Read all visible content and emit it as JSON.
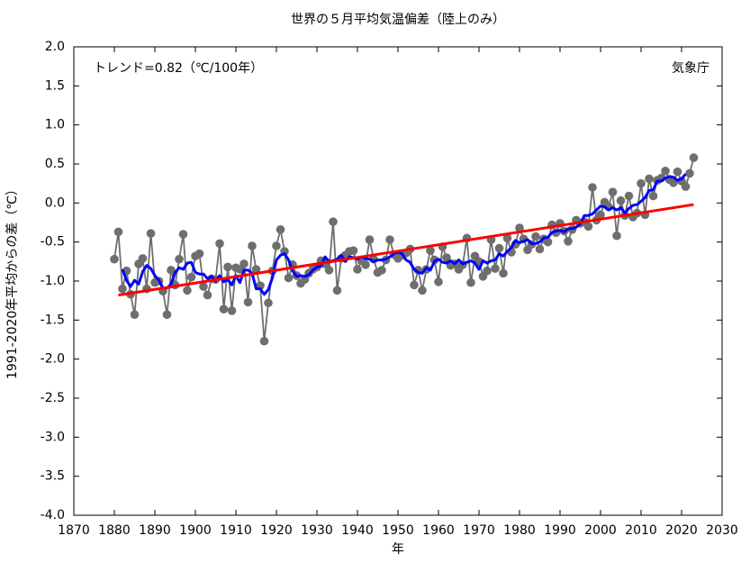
{
  "chart_data": {
    "type": "line",
    "title": "世界の５月平均気温偏差（陸上のみ）",
    "xlabel": "年",
    "ylabel": "1991-2020年平均からの差（℃）",
    "annotations": [
      "トレンド=0.82（℃/100年）",
      "気象庁"
    ],
    "x": [
      1880,
      1881,
      1882,
      1883,
      1884,
      1885,
      1886,
      1887,
      1888,
      1889,
      1890,
      1891,
      1892,
      1893,
      1894,
      1895,
      1896,
      1897,
      1898,
      1899,
      1900,
      1901,
      1902,
      1903,
      1904,
      1905,
      1906,
      1907,
      1908,
      1909,
      1910,
      1911,
      1912,
      1913,
      1914,
      1915,
      1916,
      1917,
      1918,
      1919,
      1920,
      1921,
      1922,
      1923,
      1924,
      1925,
      1926,
      1927,
      1928,
      1929,
      1930,
      1931,
      1932,
      1933,
      1934,
      1935,
      1936,
      1937,
      1938,
      1939,
      1940,
      1941,
      1942,
      1943,
      1944,
      1945,
      1946,
      1947,
      1948,
      1949,
      1950,
      1951,
      1952,
      1953,
      1954,
      1955,
      1956,
      1957,
      1958,
      1959,
      1960,
      1961,
      1962,
      1963,
      1964,
      1965,
      1966,
      1967,
      1968,
      1969,
      1970,
      1971,
      1972,
      1973,
      1974,
      1975,
      1976,
      1977,
      1978,
      1979,
      1980,
      1981,
      1982,
      1983,
      1984,
      1985,
      1986,
      1987,
      1988,
      1989,
      1990,
      1991,
      1992,
      1993,
      1994,
      1995,
      1996,
      1997,
      1998,
      1999,
      2000,
      2001,
      2002,
      2003,
      2004,
      2005,
      2006,
      2007,
      2008,
      2009,
      2010,
      2011,
      2012,
      2013,
      2014,
      2015,
      2016,
      2017,
      2018,
      2019,
      2020,
      2021,
      2022,
      2023
    ],
    "series": [
      {
        "color": "#6e6e6e",
        "markers": true,
        "values": [
          -0.72,
          -0.37,
          -1.1,
          -0.87,
          -1.17,
          -1.43,
          -0.78,
          -0.71,
          -1.1,
          -0.39,
          -1.02,
          -1.0,
          -1.13,
          -1.43,
          -0.86,
          -1.05,
          -0.72,
          -0.4,
          -1.12,
          -0.95,
          -0.68,
          -0.65,
          -1.07,
          -1.18,
          -0.97,
          -0.98,
          -0.52,
          -1.36,
          -0.82,
          -1.38,
          -0.83,
          -0.85,
          -0.78,
          -1.27,
          -0.55,
          -0.85,
          -1.06,
          -1.77,
          -1.28,
          -0.87,
          -0.55,
          -0.34,
          -0.62,
          -0.96,
          -0.79,
          -0.93,
          -1.03,
          -0.98,
          -0.9,
          -0.85,
          -0.82,
          -0.74,
          -0.78,
          -0.86,
          -0.24,
          -1.12,
          -0.71,
          -0.67,
          -0.62,
          -0.61,
          -0.85,
          -0.74,
          -0.79,
          -0.47,
          -0.72,
          -0.89,
          -0.86,
          -0.73,
          -0.47,
          -0.66,
          -0.71,
          -0.67,
          -0.64,
          -0.59,
          -1.05,
          -0.86,
          -1.12,
          -0.85,
          -0.61,
          -0.73,
          -1.01,
          -0.56,
          -0.7,
          -0.8,
          -0.78,
          -0.85,
          -0.79,
          -0.45,
          -1.02,
          -0.68,
          -0.75,
          -0.94,
          -0.87,
          -0.47,
          -0.84,
          -0.58,
          -0.9,
          -0.45,
          -0.63,
          -0.53,
          -0.32,
          -0.46,
          -0.6,
          -0.53,
          -0.43,
          -0.59,
          -0.46,
          -0.5,
          -0.28,
          -0.38,
          -0.26,
          -0.36,
          -0.49,
          -0.34,
          -0.22,
          -0.26,
          -0.24,
          -0.3,
          0.2,
          -0.22,
          -0.15,
          0.01,
          -0.05,
          0.14,
          -0.42,
          0.03,
          -0.16,
          0.09,
          -0.18,
          -0.13,
          0.25,
          -0.15,
          0.31,
          0.09,
          0.29,
          0.32,
          0.41,
          0.3,
          0.26,
          0.4,
          0.28,
          0.21,
          0.38,
          0.58
        ]
      },
      {
        "color": "#0000ff",
        "markers": false,
        "values": [
          null,
          null,
          -0.85,
          -0.99,
          -1.07,
          -0.99,
          -1.04,
          -0.88,
          -0.8,
          -0.84,
          -0.93,
          -0.99,
          -1.09,
          -1.09,
          -1.04,
          -0.89,
          -0.83,
          -0.85,
          -0.77,
          -0.76,
          -0.89,
          -0.91,
          -0.91,
          -0.97,
          -0.94,
          -1.0,
          -0.93,
          -1.01,
          -0.98,
          -1.05,
          -0.93,
          -1.02,
          -0.86,
          -0.86,
          -0.9,
          -1.1,
          -1.1,
          -1.17,
          -1.11,
          -0.96,
          -0.73,
          -0.67,
          -0.65,
          -0.73,
          -0.87,
          -0.94,
          -0.93,
          -0.94,
          -0.92,
          -0.86,
          -0.82,
          -0.81,
          -0.69,
          -0.75,
          -0.74,
          -0.72,
          -0.67,
          -0.75,
          -0.69,
          -0.7,
          -0.72,
          -0.69,
          -0.71,
          -0.72,
          -0.75,
          -0.73,
          -0.73,
          -0.72,
          -0.69,
          -0.65,
          -0.63,
          -0.65,
          -0.73,
          -0.76,
          -0.85,
          -0.89,
          -0.9,
          -0.83,
          -0.86,
          -0.75,
          -0.72,
          -0.76,
          -0.77,
          -0.74,
          -0.78,
          -0.73,
          -0.78,
          -0.76,
          -0.74,
          -0.77,
          -0.85,
          -0.74,
          -0.77,
          -0.74,
          -0.73,
          -0.65,
          -0.68,
          -0.62,
          -0.57,
          -0.48,
          -0.51,
          -0.49,
          -0.47,
          -0.52,
          -0.52,
          -0.5,
          -0.45,
          -0.44,
          -0.38,
          -0.36,
          -0.35,
          -0.37,
          -0.33,
          -0.33,
          -0.31,
          -0.27,
          -0.16,
          -0.16,
          -0.14,
          -0.09,
          -0.04,
          -0.05,
          -0.09,
          -0.06,
          -0.09,
          -0.06,
          -0.13,
          -0.07,
          -0.03,
          -0.02,
          0.02,
          0.07,
          0.16,
          0.17,
          0.28,
          0.28,
          0.32,
          0.34,
          0.33,
          0.29,
          0.31,
          0.37,
          null,
          null
        ]
      }
    ],
    "trend": {
      "color": "#ff0000",
      "x": [
        1881,
        2023
      ],
      "values": [
        -1.18,
        -0.02
      ]
    },
    "xlim": [
      1870,
      2030
    ],
    "xticks": [
      1870,
      1880,
      1890,
      1900,
      1910,
      1920,
      1930,
      1940,
      1950,
      1960,
      1970,
      1980,
      1990,
      2000,
      2010,
      2020,
      2030
    ],
    "ylim": [
      -4,
      2
    ],
    "yticks": [
      {
        "value": 2,
        "label": "2.0"
      },
      1.5,
      {
        "value": 1,
        "label": "1.0"
      },
      0.5,
      {
        "value": 0,
        "label": "0.0"
      },
      -0.5,
      {
        "value": -1,
        "label": "-1.0"
      },
      -1.5,
      {
        "value": -2,
        "label": "-2.0"
      },
      -2.5,
      {
        "value": -3,
        "label": "-3.0"
      },
      -3.5,
      {
        "value": -4,
        "label": "-4.0"
      }
    ],
    "grid": false
  }
}
